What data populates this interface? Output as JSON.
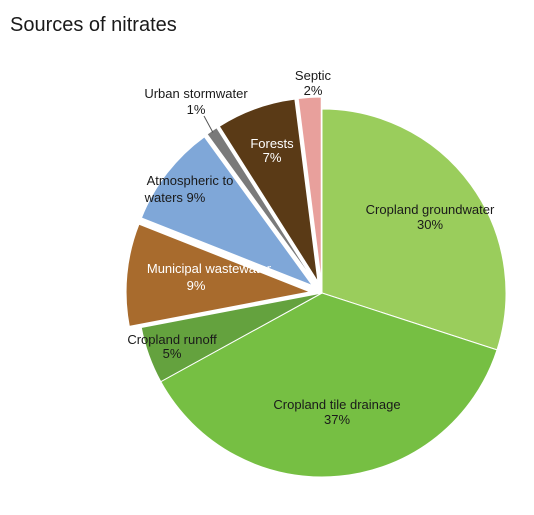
{
  "chart_data": {
    "type": "pie",
    "title": "Sources of nitrates",
    "unit": "%",
    "slices": [
      {
        "name": "Cropland groundwater",
        "value": 30,
        "label": "30%",
        "color": "#9acd5c"
      },
      {
        "name": "Cropland tile drainage",
        "value": 37,
        "label": "37%",
        "color": "#76bf43"
      },
      {
        "name": "Cropland runoff",
        "value": 5,
        "label": "5%",
        "color": "#64a23e"
      },
      {
        "name": "Municipal wastewater",
        "value": 9,
        "label": "9%",
        "color": "#a86b2d"
      },
      {
        "name": "Atmospheric to waters",
        "value": 9,
        "label": "9%",
        "color": "#7fa7d8"
      },
      {
        "name": "Urban stormwater",
        "value": 1,
        "label": "1%",
        "color": "#7a7a7a"
      },
      {
        "name": "Forests",
        "value": 7,
        "label": "7%",
        "color": "#5a3a16"
      },
      {
        "name": "Septic",
        "value": 2,
        "label": "2%",
        "color": "#e8a09c"
      }
    ]
  }
}
